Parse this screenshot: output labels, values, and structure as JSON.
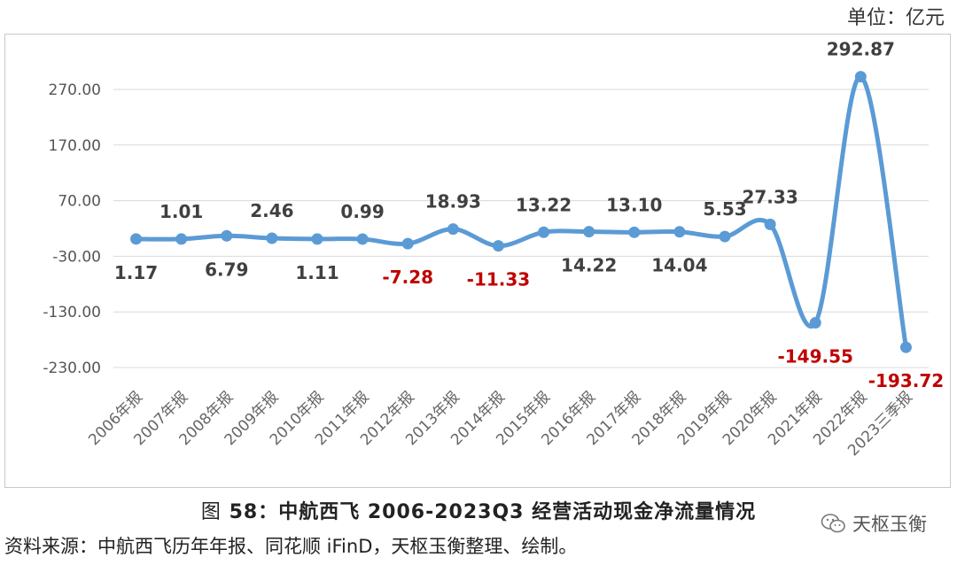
{
  "unit_label": "单位：亿元",
  "caption": {
    "prefix": "图",
    "number": "58：",
    "title": "中航西飞 2006-2023Q3 经营活动现金净流量情况"
  },
  "source": "资料来源：中航西飞历年年报、同花顺 iFinD，天枢玉衡整理、绘制。",
  "watermark": {
    "text": "天枢玉衡",
    "icon": "wechat-icon"
  },
  "colors": {
    "line": "#5b9bd5",
    "negative_label": "#c00000",
    "label": "#404040",
    "grid": "#d9d9d9"
  },
  "chart_data": {
    "type": "line",
    "title": "",
    "xlabel": "",
    "ylabel": "",
    "ylim": [
      -280,
      330
    ],
    "yticks": [
      "270.00",
      "170.00",
      "70.00",
      "-30.00",
      "-130.00",
      "-230.00"
    ],
    "ytick_values": [
      270,
      170,
      70,
      -30,
      -130,
      -230
    ],
    "grid": true,
    "smooth": true,
    "categories": [
      "2006年报",
      "2007年报",
      "2008年报",
      "2009年报",
      "2010年报",
      "2011年报",
      "2012年报",
      "2013年报",
      "2014年报",
      "2015年报",
      "2016年报",
      "2017年报",
      "2018年报",
      "2019年报",
      "2020年报",
      "2021年报",
      "2022年报",
      "2023三季报"
    ],
    "values": [
      1.17,
      1.01,
      6.79,
      2.46,
      1.11,
      0.99,
      -7.28,
      18.93,
      -11.33,
      13.22,
      14.22,
      13.1,
      14.04,
      5.53,
      27.33,
      -149.55,
      292.87,
      -193.72
    ],
    "data_labels": [
      "1.17",
      "1.01",
      "6.79",
      "2.46",
      "1.11",
      "0.99",
      "-7.28",
      "18.93",
      "-11.33",
      "13.22",
      "14.22",
      "13.10",
      "14.04",
      "5.53",
      "27.33",
      "-149.55",
      "292.87",
      "-193.72"
    ],
    "label_position": [
      "below",
      "above",
      "below",
      "above",
      "below",
      "above",
      "below",
      "above",
      "below",
      "above",
      "below",
      "above",
      "below",
      "above",
      "above",
      "below",
      "above",
      "below"
    ]
  }
}
